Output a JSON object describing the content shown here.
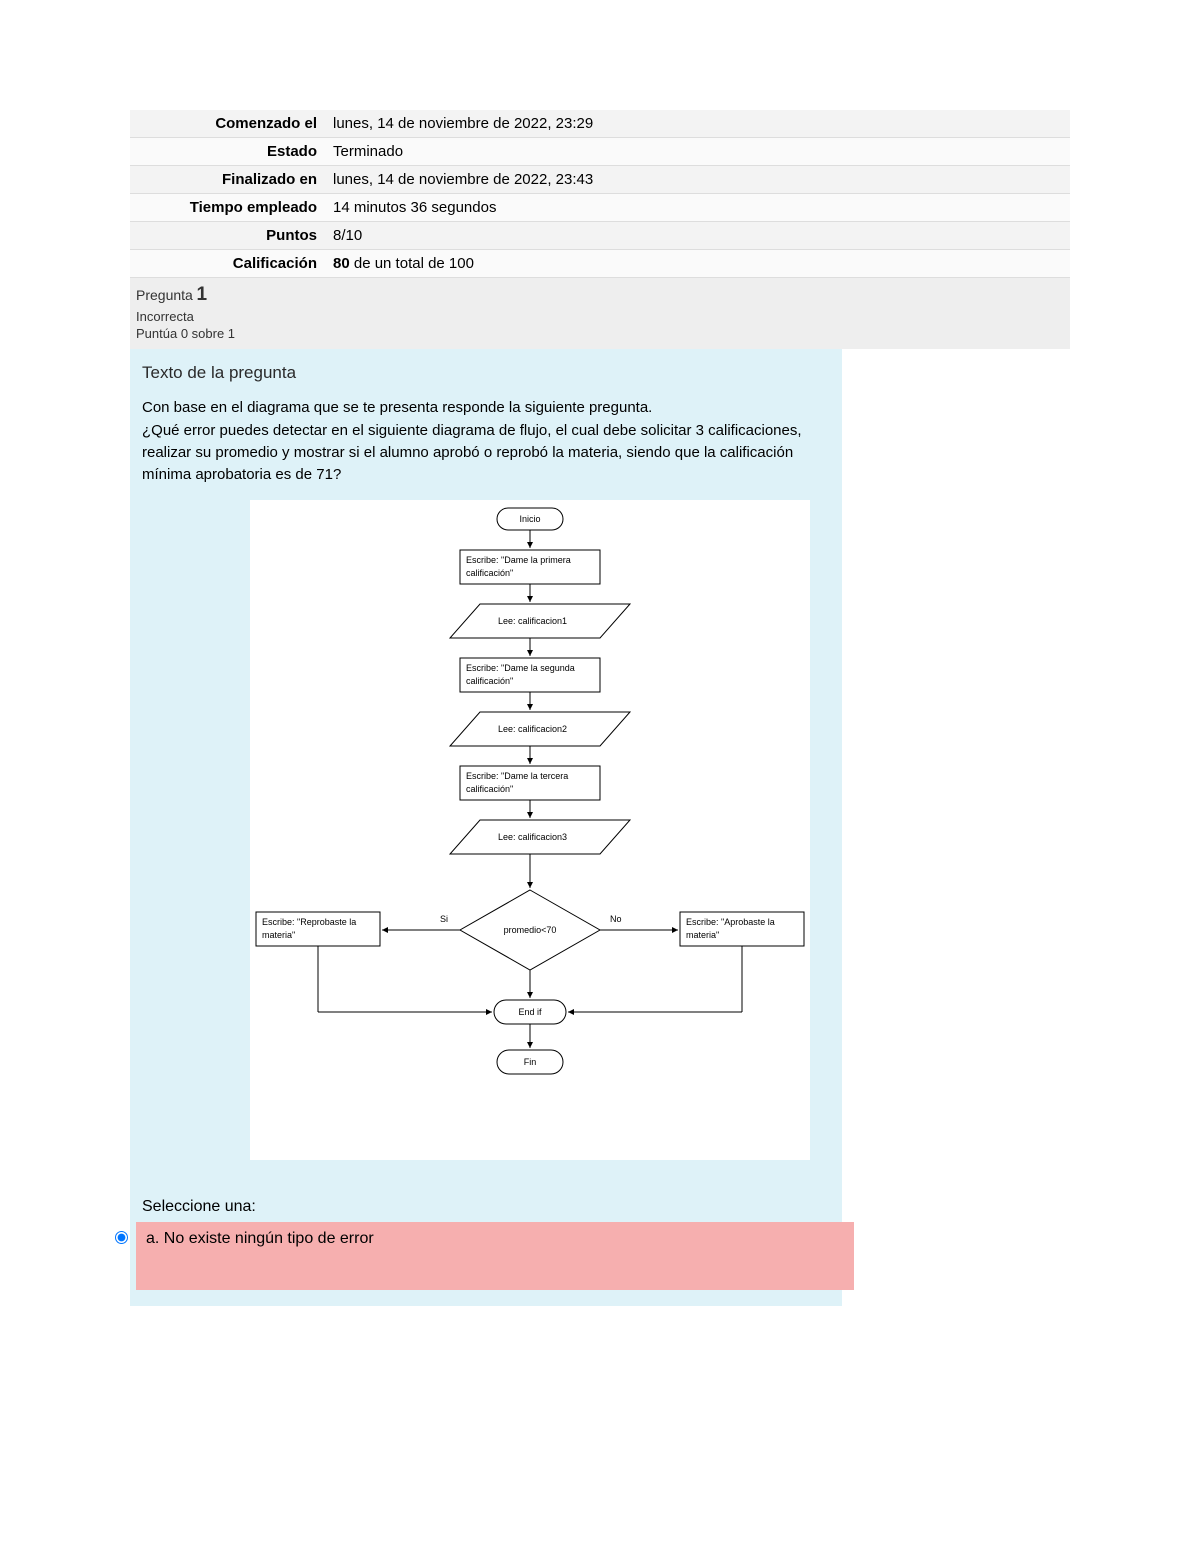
{
  "summary": {
    "rows": [
      {
        "label": "Comenzado el",
        "value": "lunes, 14 de noviembre de 2022, 23:29"
      },
      {
        "label": "Estado",
        "value": "Terminado"
      },
      {
        "label": "Finalizado en",
        "value": "lunes, 14 de noviembre de 2022, 23:43"
      },
      {
        "label": "Tiempo empleado",
        "value": "14 minutos 36 segundos"
      },
      {
        "label": "Puntos",
        "value": "8/10"
      },
      {
        "label": "Calificación",
        "value_bold": "80",
        "value_rest": " de un total de 100"
      }
    ]
  },
  "question": {
    "label": "Pregunta",
    "number": "1",
    "status": "Incorrecta",
    "grade": "Puntúa 0 sobre 1",
    "heading": "Texto de la pregunta",
    "para1": "Con base en el diagrama que se te presenta responde la siguiente pregunta.",
    "para2": "¿Qué error puedes detectar en el siguiente diagrama de flujo, el cual debe solicitar 3 calificaciones, realizar su promedio y mostrar si el alumno aprobó o reprobó la materia, siendo que la calificación mínima aprobatoria es de 71?"
  },
  "flowchart": {
    "stroke": "#000000",
    "fill": "#ffffff",
    "arrow_len": 18,
    "inicio": "Inicio",
    "esc1a": "Escribe: \"Dame la primera",
    "esc1b": "calificación\"",
    "lee1": "Lee: calificacion1",
    "esc2a": "Escribe: \"Dame la segunda",
    "esc2b": "calificación\"",
    "lee2": "Lee: calificacion2",
    "esc3a": "Escribe: \"Dame la tercera",
    "esc3b": "calificación\"",
    "lee3": "Lee: calificacion3",
    "cond": "promedio<70",
    "si": "Si",
    "no": "No",
    "left_a": "Escribe: \"Reprobaste la",
    "left_b": "materia\"",
    "right_a": "Escribe: \"Aprobaste la",
    "right_b": "materia\"",
    "endif": "End if",
    "fin": "Fin"
  },
  "answer": {
    "select": "Seleccione una:",
    "opt_a": "a. No existe ningún tipo de error",
    "colors": {
      "wrong_bg": "#f6afaf",
      "qbody_bg": "#def2f8"
    }
  }
}
